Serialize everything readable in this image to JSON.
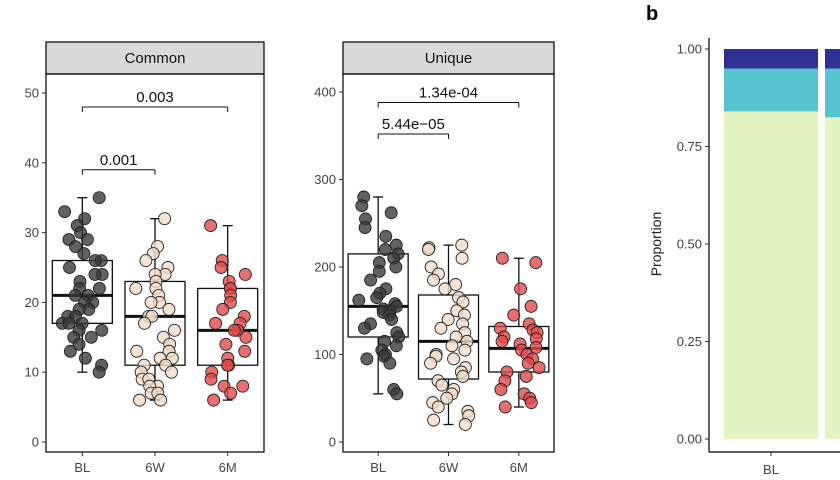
{
  "colors": {
    "BL": "#3a3a3a",
    "6W": "#f2dcc8",
    "6M": "#e24a4a",
    "strip_bg": "#d9d9d9",
    "bar_dark": "#2e3192",
    "bar_teal": "#56c4cf",
    "bar_light": "#e3f4c2"
  },
  "panel_b": {
    "letter": "b"
  },
  "chart_data": [
    {
      "type": "boxplot",
      "title": "Common",
      "categories": [
        "BL",
        "6W",
        "6M"
      ],
      "ylim": [
        0,
        50
      ],
      "yticks": [
        0,
        10,
        20,
        30,
        40,
        50
      ],
      "boxes": [
        {
          "group": "BL",
          "min": 10,
          "q1": 17,
          "median": 21,
          "q3": 26,
          "max": 35
        },
        {
          "group": "6W",
          "min": 6,
          "q1": 11,
          "median": 18,
          "q3": 23,
          "max": 32
        },
        {
          "group": "6M",
          "min": 6,
          "q1": 11,
          "median": 16,
          "q3": 22,
          "max": 31
        }
      ],
      "points": {
        "BL": [
          35,
          33,
          32,
          31,
          30,
          29,
          29,
          28,
          27,
          26,
          26,
          25,
          24,
          24,
          23,
          22,
          22,
          21,
          21,
          20,
          20,
          19,
          19,
          18,
          18,
          17,
          17,
          17,
          16,
          16,
          15,
          15,
          14,
          13,
          12,
          11,
          10
        ],
        "6W": [
          32,
          28,
          27,
          26,
          25,
          24,
          24,
          23,
          22,
          22,
          21,
          20,
          20,
          19,
          18,
          18,
          17,
          16,
          15,
          14,
          13,
          13,
          12,
          12,
          11,
          11,
          10,
          10,
          9,
          9,
          8,
          8,
          7,
          7,
          6,
          6
        ],
        "6M": [
          31,
          26,
          25,
          24,
          23,
          22,
          22,
          21,
          20,
          19,
          18,
          17,
          17,
          16,
          16,
          15,
          14,
          13,
          12,
          11,
          11,
          10,
          9,
          8,
          8,
          7,
          6
        ]
      },
      "comparisons": [
        {
          "from": "BL",
          "to": "6W",
          "label": "0.001",
          "y": 39
        },
        {
          "from": "BL",
          "to": "6M",
          "label": "0.003",
          "y": 48
        }
      ]
    },
    {
      "type": "boxplot",
      "title": "Unique",
      "categories": [
        "BL",
        "6W",
        "6M"
      ],
      "ylim": [
        0,
        400
      ],
      "yticks": [
        0,
        100,
        200,
        300,
        400
      ],
      "boxes": [
        {
          "group": "BL",
          "min": 55,
          "q1": 120,
          "median": 155,
          "q3": 215,
          "max": 280
        },
        {
          "group": "6W",
          "min": 20,
          "q1": 72,
          "median": 115,
          "q3": 168,
          "max": 225
        },
        {
          "group": "6M",
          "min": 40,
          "q1": 80,
          "median": 107,
          "q3": 132,
          "max": 210
        }
      ],
      "points": {
        "BL": [
          280,
          270,
          262,
          255,
          245,
          235,
          225,
          220,
          215,
          210,
          205,
          200,
          195,
          185,
          175,
          170,
          165,
          162,
          158,
          155,
          152,
          150,
          148,
          145,
          140,
          135,
          130,
          125,
          120,
          115,
          110,
          105,
          100,
          98,
          95,
          90,
          60,
          55
        ],
        "6W": [
          225,
          222,
          220,
          210,
          200,
          192,
          185,
          180,
          175,
          165,
          160,
          150,
          145,
          140,
          135,
          130,
          125,
          120,
          115,
          110,
          105,
          100,
          98,
          95,
          90,
          85,
          80,
          75,
          70,
          65,
          60,
          55,
          50,
          45,
          40,
          35,
          30,
          25,
          20
        ],
        "6M": [
          210,
          205,
          175,
          155,
          145,
          135,
          130,
          128,
          125,
          120,
          118,
          115,
          112,
          108,
          105,
          100,
          95,
          90,
          85,
          80,
          75,
          70,
          60,
          55,
          50,
          45,
          40
        ]
      },
      "comparisons": [
        {
          "from": "BL",
          "to": "6W",
          "label": "5.44e−05",
          "y": 352
        },
        {
          "from": "BL",
          "to": "6M",
          "label": "1.34e-04",
          "y": 388
        }
      ]
    },
    {
      "type": "bar",
      "stacked": true,
      "ylabel": "Proportion",
      "ylim": [
        0,
        1
      ],
      "yticks": [
        "0.00",
        "0.25",
        "0.50",
        "0.75",
        "1.00"
      ],
      "categories": [
        "BL"
      ],
      "series": [
        {
          "values": [
            0.84
          ],
          "color_key": "bar_light"
        },
        {
          "values": [
            0.11
          ],
          "color_key": "bar_teal"
        },
        {
          "values": [
            0.05
          ],
          "color_key": "bar_dark"
        }
      ],
      "partial_next_bar": [
        {
          "values": [
            0.825
          ],
          "color_key": "bar_light"
        },
        {
          "values": [
            0.125
          ],
          "color_key": "bar_teal"
        },
        {
          "values": [
            0.05
          ],
          "color_key": "bar_dark"
        }
      ]
    }
  ]
}
